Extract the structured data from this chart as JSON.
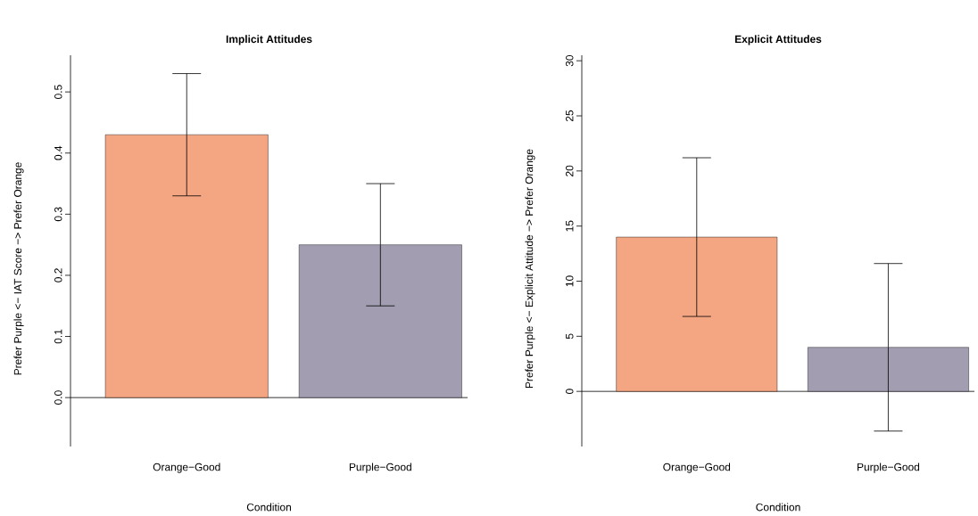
{
  "chart_data": [
    {
      "type": "bar",
      "title": "Implicit Attitudes",
      "xlabel": "Condition",
      "ylabel": "Prefer Purple <− IAT Score −> Prefer Orange",
      "categories": [
        "Orange−Good",
        "Purple−Good"
      ],
      "values": [
        0.43,
        0.25
      ],
      "errors": [
        0.1,
        0.1
      ],
      "colors": [
        "#f4a582",
        "#a29db0"
      ],
      "ylim": [
        -0.08,
        0.56
      ],
      "yticks": [
        {
          "value": 0,
          "label": "0.0"
        },
        {
          "value": 0.1,
          "label": "0.1"
        },
        {
          "value": 0.2,
          "label": "0.2"
        },
        {
          "value": 0.3,
          "label": "0.3"
        },
        {
          "value": 0.4,
          "label": "0.4"
        },
        {
          "value": 0.5,
          "label": "0.5"
        }
      ]
    },
    {
      "type": "bar",
      "title": "Explicit Attitudes",
      "xlabel": "Condition",
      "ylabel": "Prefer Purple <− Explicit Attitude −> Prefer Orange",
      "categories": [
        "Orange−Good",
        "Purple−Good"
      ],
      "values": [
        14,
        4
      ],
      "errors": [
        7.2,
        7.6
      ],
      "colors": [
        "#f4a582",
        "#a29db0"
      ],
      "ylim": [
        -5,
        30.5
      ],
      "yticks": [
        0,
        5,
        10,
        15,
        20,
        25,
        30
      ]
    }
  ]
}
